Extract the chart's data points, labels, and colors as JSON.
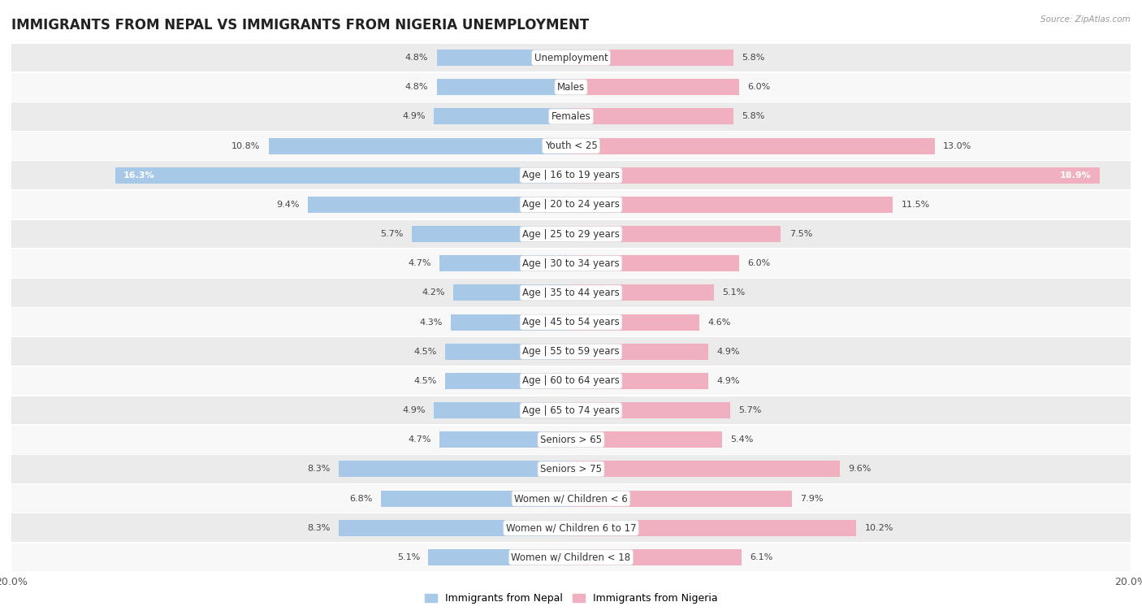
{
  "title": "IMMIGRANTS FROM NEPAL VS IMMIGRANTS FROM NIGERIA UNEMPLOYMENT",
  "source": "Source: ZipAtlas.com",
  "categories": [
    "Unemployment",
    "Males",
    "Females",
    "Youth < 25",
    "Age | 16 to 19 years",
    "Age | 20 to 24 years",
    "Age | 25 to 29 years",
    "Age | 30 to 34 years",
    "Age | 35 to 44 years",
    "Age | 45 to 54 years",
    "Age | 55 to 59 years",
    "Age | 60 to 64 years",
    "Age | 65 to 74 years",
    "Seniors > 65",
    "Seniors > 75",
    "Women w/ Children < 6",
    "Women w/ Children 6 to 17",
    "Women w/ Children < 18"
  ],
  "nepal_values": [
    4.8,
    4.8,
    4.9,
    10.8,
    16.3,
    9.4,
    5.7,
    4.7,
    4.2,
    4.3,
    4.5,
    4.5,
    4.9,
    4.7,
    8.3,
    6.8,
    8.3,
    5.1
  ],
  "nigeria_values": [
    5.8,
    6.0,
    5.8,
    13.0,
    18.9,
    11.5,
    7.5,
    6.0,
    5.1,
    4.6,
    4.9,
    4.9,
    5.7,
    5.4,
    9.6,
    7.9,
    10.2,
    6.1
  ],
  "nepal_color": "#a8c8e8",
  "nigeria_color": "#f0b0c0",
  "nepal_label": "Immigrants from Nepal",
  "nigeria_label": "Immigrants from Nigeria",
  "xlim": 20.0,
  "bar_height": 0.55,
  "row_color_odd": "#ebebeb",
  "row_color_even": "#f8f8f8",
  "row_separator_color": "#ffffff",
  "title_fontsize": 12,
  "label_fontsize": 8.5,
  "value_fontsize": 8,
  "axis_label_color": "#555555"
}
